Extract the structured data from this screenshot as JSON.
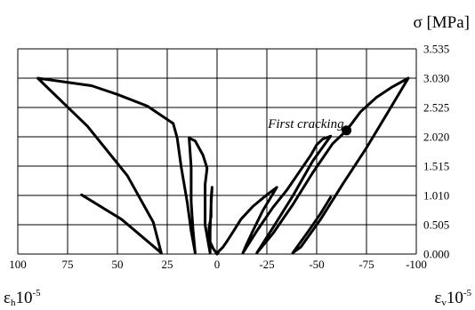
{
  "chart_data": {
    "type": "line",
    "title": "",
    "x_range": [
      100,
      -100
    ],
    "y_range": [
      0,
      3.535
    ],
    "x_ticks": [
      "100",
      "75",
      "50",
      "25",
      "0",
      "-25",
      "-50",
      "-75",
      "-100"
    ],
    "x_tick_values": [
      100,
      75,
      50,
      25,
      0,
      -25,
      -50,
      -75,
      -100
    ],
    "y_ticks": [
      "0.000",
      "0.505",
      "1.010",
      "1.515",
      "2.020",
      "2.525",
      "3.030",
      "3.535"
    ],
    "y_tick_values": [
      0,
      0.505,
      1.01,
      1.515,
      2.02,
      2.525,
      3.03,
      3.535
    ],
    "y_axis_label": "σ [MPa]",
    "x_label_left": {
      "symbol": "ε",
      "sub": "h",
      "base": "10",
      "exp": "-5"
    },
    "x_label_right": {
      "symbol": "ε",
      "sub": "v",
      "base": "10",
      "exp": "-5"
    },
    "grid": true,
    "annotation": {
      "text": "First cracking",
      "x": -65,
      "y": 2.13
    },
    "series": [
      {
        "values": [
          {
            "x": 0,
            "y": 0
          },
          {
            "x": -1,
            "y": 0.05
          },
          {
            "x": -3,
            "y": 0.12
          },
          {
            "x": -5,
            "y": 0.22
          },
          {
            "x": -8,
            "y": 0.38
          },
          {
            "x": -12,
            "y": 0.6
          },
          {
            "x": -18,
            "y": 0.82
          },
          {
            "x": -25,
            "y": 1.02
          },
          {
            "x": -30,
            "y": 1.15
          },
          {
            "x": -23,
            "y": 0.75
          },
          {
            "x": -18,
            "y": 0.4
          },
          {
            "x": -15,
            "y": 0.18
          },
          {
            "x": -13,
            "y": 0.02
          },
          {
            "x": -20,
            "y": 0.4
          },
          {
            "x": -28,
            "y": 0.8
          },
          {
            "x": -35,
            "y": 1.1
          },
          {
            "x": -42,
            "y": 1.45
          },
          {
            "x": -47,
            "y": 1.7
          },
          {
            "x": -50,
            "y": 1.88
          },
          {
            "x": -53,
            "y": 1.98
          },
          {
            "x": -57,
            "y": 2.03
          },
          {
            "x": -48,
            "y": 1.6
          },
          {
            "x": -38,
            "y": 1.0
          },
          {
            "x": -28,
            "y": 0.45
          },
          {
            "x": -20,
            "y": 0.02
          },
          {
            "x": -28,
            "y": 0.35
          },
          {
            "x": -38,
            "y": 0.85
          },
          {
            "x": -48,
            "y": 1.4
          },
          {
            "x": -58,
            "y": 1.9
          },
          {
            "x": -65,
            "y": 2.13
          },
          {
            "x": -72,
            "y": 2.45
          },
          {
            "x": -80,
            "y": 2.7
          },
          {
            "x": -88,
            "y": 2.88
          },
          {
            "x": -96,
            "y": 3.03
          },
          {
            "x": -85,
            "y": 2.4
          },
          {
            "x": -75,
            "y": 1.83
          },
          {
            "x": -63,
            "y": 1.2
          },
          {
            "x": -52,
            "y": 0.6
          },
          {
            "x": -42,
            "y": 0.12
          },
          {
            "x": -38,
            "y": 0.02
          },
          {
            "x": -46,
            "y": 0.4
          },
          {
            "x": -52,
            "y": 0.7
          },
          {
            "x": -57,
            "y": 0.98
          }
        ]
      },
      {
        "values": [
          {
            "x": 0,
            "y": 0
          },
          {
            "x": 2,
            "y": 0.1
          },
          {
            "x": 4,
            "y": 0.25
          },
          {
            "x": 4,
            "y": 0.45
          },
          {
            "x": 3,
            "y": 0.65
          },
          {
            "x": 3,
            "y": 0.8
          },
          {
            "x": 3,
            "y": 0.95
          },
          {
            "x": 2.5,
            "y": 1.15
          },
          {
            "x": 3,
            "y": 0.85
          },
          {
            "x": 3.5,
            "y": 0.4
          },
          {
            "x": 3.5,
            "y": 0.02
          },
          {
            "x": 6,
            "y": 0.5
          },
          {
            "x": 6,
            "y": 0.9
          },
          {
            "x": 6,
            "y": 1.2
          },
          {
            "x": 5,
            "y": 1.48
          },
          {
            "x": 7,
            "y": 1.7
          },
          {
            "x": 11,
            "y": 1.95
          },
          {
            "x": 14,
            "y": 2.0
          },
          {
            "x": 13,
            "y": 1.5
          },
          {
            "x": 13,
            "y": 0.9
          },
          {
            "x": 12,
            "y": 0.4
          },
          {
            "x": 11,
            "y": 0.02
          },
          {
            "x": 13,
            "y": 0.4
          },
          {
            "x": 15,
            "y": 0.9
          },
          {
            "x": 18,
            "y": 1.5
          },
          {
            "x": 20,
            "y": 2.0
          },
          {
            "x": 22,
            "y": 2.25
          },
          {
            "x": 35,
            "y": 2.55
          },
          {
            "x": 50,
            "y": 2.75
          },
          {
            "x": 63,
            "y": 2.9
          },
          {
            "x": 90,
            "y": 3.03
          },
          {
            "x": 65,
            "y": 2.2
          },
          {
            "x": 45,
            "y": 1.35
          },
          {
            "x": 32,
            "y": 0.55
          },
          {
            "x": 28,
            "y": 0.02
          },
          {
            "x": 48,
            "y": 0.6
          },
          {
            "x": 68,
            "y": 1.02
          }
        ]
      }
    ]
  }
}
